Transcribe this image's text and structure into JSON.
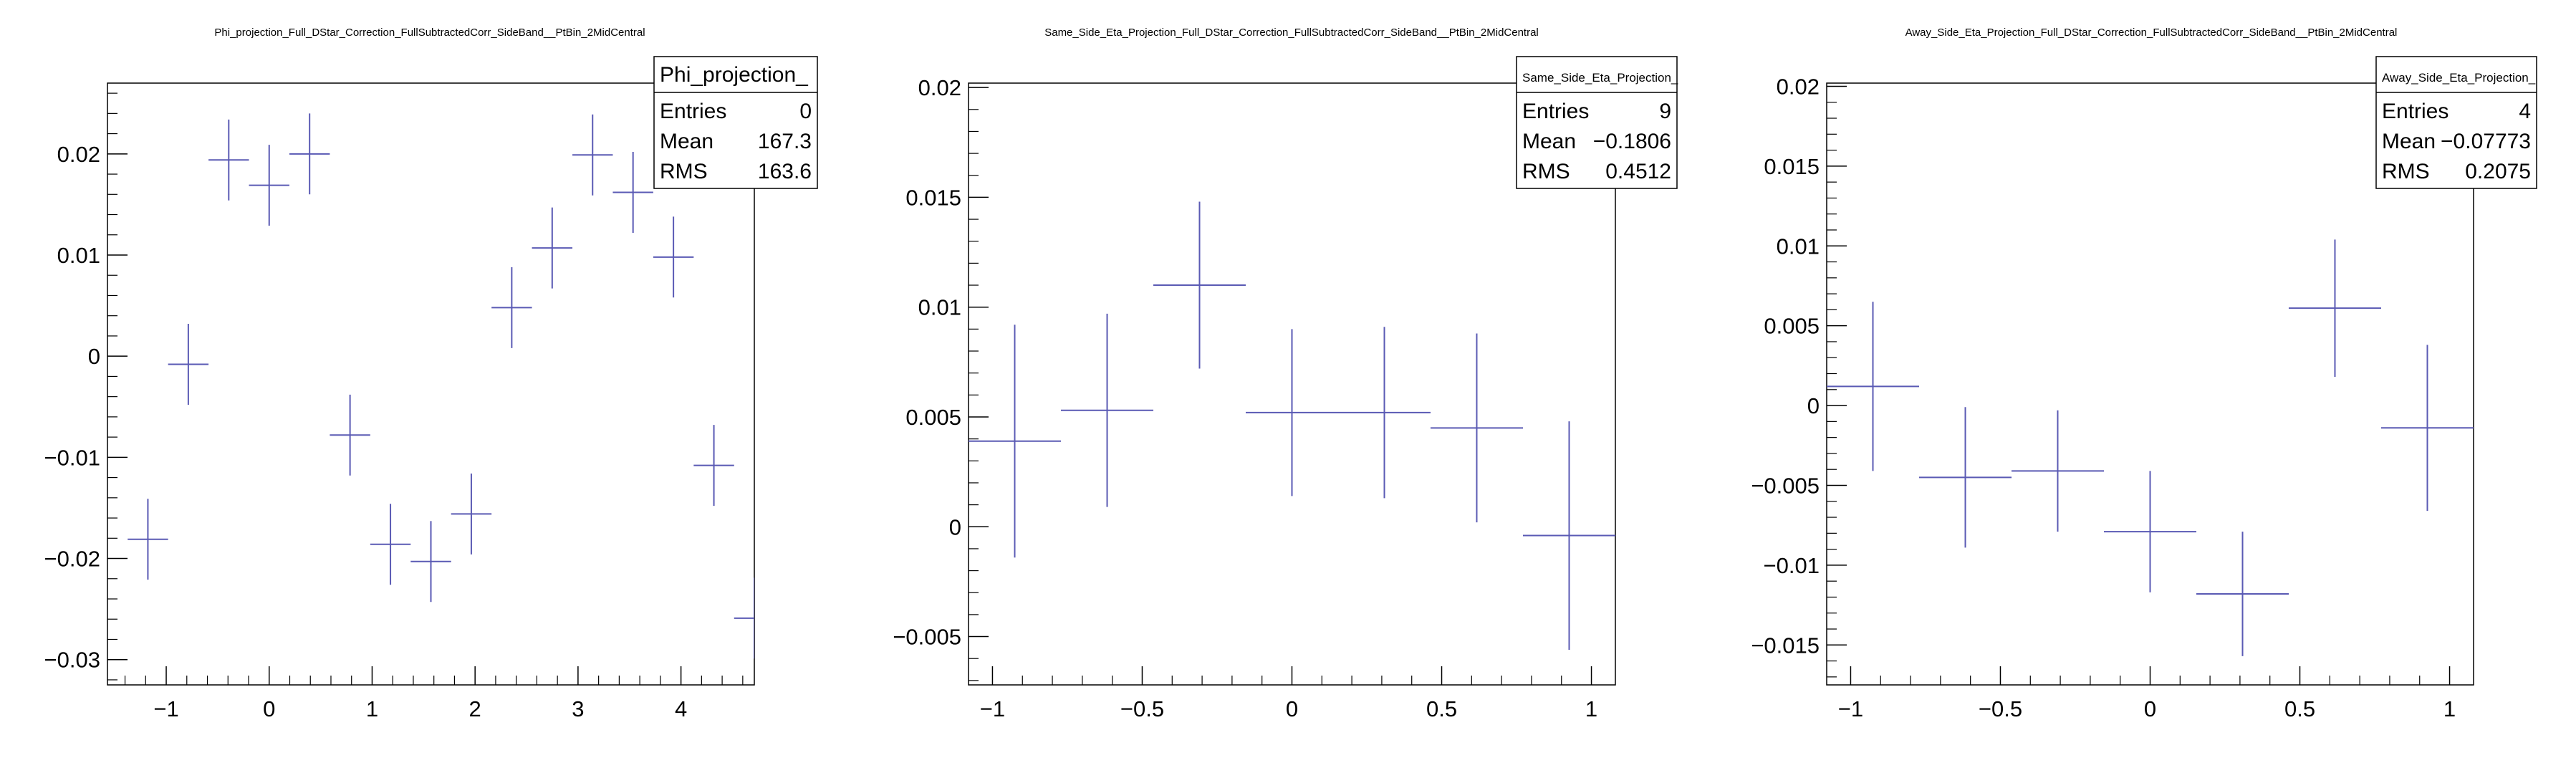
{
  "chart_data": [
    {
      "type": "scatter",
      "title": "Phi_projection_Full_DStar_Correction_FullSubtractedCorr_SideBand__PtBin_2MidCentral",
      "xlim": [
        -1.5708,
        4.7124
      ],
      "ylim": [
        -0.0325,
        0.027
      ],
      "xticks": [
        -1,
        0,
        1,
        2,
        3,
        4
      ],
      "xtick_labels": [
        "−1",
        "0",
        "1",
        "2",
        "3",
        "4"
      ],
      "yticks": [
        -0.03,
        -0.02,
        -0.01,
        0,
        0.01,
        0.02
      ],
      "ytick_labels": [
        "−0.03",
        "−0.02",
        "−0.01",
        "0",
        "0.01",
        "0.02"
      ],
      "bin_width": 0.3927,
      "series": [
        {
          "color": "#5a5ab4",
          "x": [
            -1.1781,
            -0.7854,
            -0.3927,
            0.0,
            0.3927,
            0.7854,
            1.1781,
            1.5708,
            1.9635,
            2.3562,
            2.7489,
            3.1416,
            3.5343,
            3.927,
            4.3197,
            4.7124
          ],
          "y": [
            -0.0181,
            -0.0008,
            0.0194,
            0.0169,
            0.02,
            -0.0078,
            -0.0186,
            -0.0203,
            -0.0156,
            0.0048,
            0.0107,
            0.0199,
            0.0162,
            0.0098,
            -0.0108,
            -0.0259
          ],
          "err": [
            0.004,
            0.004,
            0.004,
            0.004,
            0.004,
            0.004,
            0.004,
            0.004,
            0.004,
            0.004,
            0.004,
            0.004,
            0.004,
            0.004,
            0.004,
            0.004
          ]
        }
      ],
      "stats": {
        "name": "Phi_projection_",
        "rows": [
          {
            "label": "Entries",
            "value": "0"
          },
          {
            "label": "Mean",
            "value": "167.3"
          },
          {
            "label": "RMS",
            "value": "163.6"
          }
        ]
      }
    },
    {
      "type": "scatter",
      "title": "Same_Side_Eta_Projection_Full_DStar_Correction_FullSubtractedCorr_SideBand__PtBin_2MidCentral",
      "xlim": [
        -1.08,
        1.08
      ],
      "ylim": [
        -0.0072,
        0.0202
      ],
      "xticks": [
        -1,
        -0.5,
        0,
        0.5,
        1
      ],
      "xtick_labels": [
        "−1",
        "−0.5",
        "0",
        "0.5",
        "1"
      ],
      "yticks": [
        -0.005,
        0,
        0.005,
        0.01,
        0.015,
        0.02
      ],
      "ytick_labels": [
        "−0.005",
        "0",
        "0.005",
        "0.01",
        "0.015",
        "0.02"
      ],
      "bin_width": 0.3086,
      "series": [
        {
          "color": "#5a5ab4",
          "x": [
            -0.9257,
            -0.6171,
            -0.3086,
            0.0,
            0.3086,
            0.6171,
            0.9257
          ],
          "y": [
            0.0039,
            0.0053,
            0.011,
            0.0052,
            0.0052,
            0.0045,
            -0.0004
          ],
          "err": [
            0.0053,
            0.0044,
            0.0038,
            0.0038,
            0.0039,
            0.0043,
            0.0052
          ]
        }
      ],
      "stats": {
        "name": "Same_Side_Eta_Projection_",
        "rows": [
          {
            "label": "Entries",
            "value": "9"
          },
          {
            "label": "Mean",
            "value": "−0.1806"
          },
          {
            "label": "RMS",
            "value": "0.4512"
          }
        ]
      }
    },
    {
      "type": "scatter",
      "title": "Away_Side_Eta_Projection_Full_DStar_Correction_FullSubtractedCorr_SideBand__PtBin_2MidCentral",
      "xlim": [
        -1.08,
        1.08
      ],
      "ylim": [
        -0.0175,
        0.0202
      ],
      "xticks": [
        -1,
        -0.5,
        0,
        0.5,
        1
      ],
      "xtick_labels": [
        "−1",
        "−0.5",
        "0",
        "0.5",
        "1"
      ],
      "yticks": [
        -0.015,
        -0.01,
        -0.005,
        0,
        0.005,
        0.01,
        0.015,
        0.02
      ],
      "ytick_labels": [
        "−0.015",
        "−0.01",
        "−0.005",
        "0",
        "0.005",
        "0.01",
        "0.015",
        "0.02"
      ],
      "bin_width": 0.3086,
      "series": [
        {
          "color": "#5a5ab4",
          "x": [
            -0.9257,
            -0.6171,
            -0.3086,
            0.0,
            0.3086,
            0.6171,
            0.9257
          ],
          "y": [
            0.0012,
            -0.0045,
            -0.0041,
            -0.0079,
            -0.0118,
            0.0061,
            -0.0014
          ],
          "err": [
            0.0053,
            0.0044,
            0.0038,
            0.0038,
            0.0039,
            0.0043,
            0.0052
          ]
        }
      ],
      "stats": {
        "name": "Away_Side_Eta_Projection_",
        "rows": [
          {
            "label": "Entries",
            "value": "4"
          },
          {
            "label": "Mean",
            "value": "−0.07773"
          },
          {
            "label": "RMS",
            "value": "0.2075"
          }
        ]
      }
    }
  ]
}
